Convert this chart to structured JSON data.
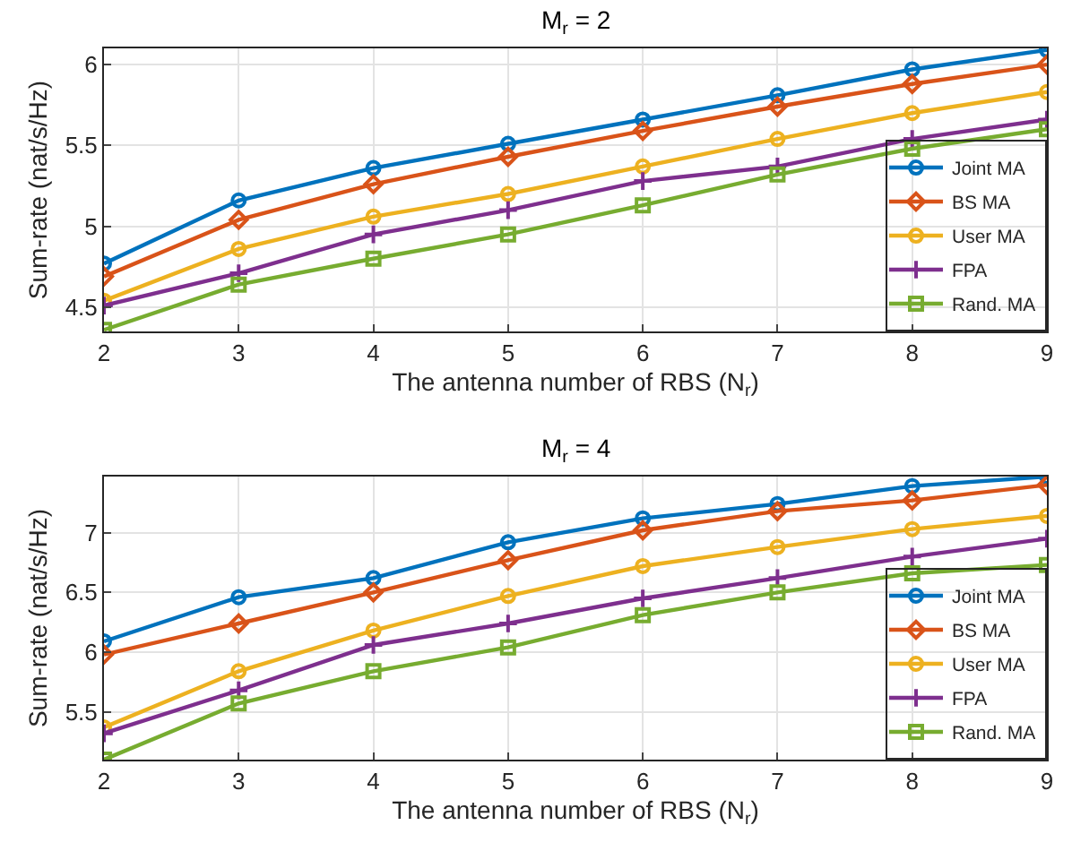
{
  "chart_data": [
    {
      "type": "line",
      "title": "M$_{r}$ = 2",
      "xlabel": "The antenna number of RBS (N$_{r}$)",
      "ylabel": "Sum-rate (nat/s/Hz)",
      "x": [
        2,
        3,
        4,
        5,
        6,
        7,
        8,
        9
      ],
      "xlim": [
        2,
        9
      ],
      "xticks": [
        2,
        3,
        4,
        5,
        6,
        7,
        8,
        9
      ],
      "ylim": [
        4.35,
        6.1
      ],
      "yticks": [
        4.5,
        5,
        5.5,
        6
      ],
      "grid": true,
      "legend": "bottom right",
      "series": [
        {
          "name": "Joint MA",
          "color": "#0072bd",
          "marker": "circle",
          "values": [
            4.77,
            5.16,
            5.36,
            5.51,
            5.66,
            5.81,
            5.97,
            6.09
          ]
        },
        {
          "name": "BS MA",
          "color": "#d95319",
          "marker": "diamond",
          "values": [
            4.69,
            5.04,
            5.26,
            5.43,
            5.59,
            5.74,
            5.88,
            6.0
          ]
        },
        {
          "name": "User MA",
          "color": "#edb120",
          "marker": "circle",
          "values": [
            4.54,
            4.86,
            5.06,
            5.2,
            5.37,
            5.54,
            5.7,
            5.83
          ]
        },
        {
          "name": "FPA",
          "color": "#7e2f8e",
          "marker": "cross",
          "values": [
            4.51,
            4.71,
            4.95,
            5.1,
            5.28,
            5.37,
            5.54,
            5.66
          ]
        },
        {
          "name": "Rand. MA",
          "color": "#77ac30",
          "marker": "square",
          "values": [
            4.36,
            4.64,
            4.8,
            4.95,
            5.13,
            5.32,
            5.48,
            5.6
          ]
        }
      ]
    },
    {
      "type": "line",
      "title": "M$_{r}$ = 4",
      "xlabel": "The antenna number of RBS (N$_{r}$)",
      "ylabel": "Sum-rate (nat/s/Hz)",
      "x": [
        2,
        3,
        4,
        5,
        6,
        7,
        8,
        9
      ],
      "xlim": [
        2,
        9
      ],
      "xticks": [
        2,
        3,
        4,
        5,
        6,
        7,
        8,
        9
      ],
      "ylim": [
        5.1,
        7.47
      ],
      "yticks": [
        5.5,
        6,
        6.5,
        7
      ],
      "grid": true,
      "legend": "bottom right",
      "series": [
        {
          "name": "Joint MA",
          "color": "#0072bd",
          "marker": "circle",
          "values": [
            6.09,
            6.46,
            6.62,
            6.92,
            7.12,
            7.24,
            7.39,
            7.47
          ]
        },
        {
          "name": "BS MA",
          "color": "#d95319",
          "marker": "diamond",
          "values": [
            5.98,
            6.24,
            6.5,
            6.77,
            7.02,
            7.18,
            7.27,
            7.4
          ]
        },
        {
          "name": "User MA",
          "color": "#edb120",
          "marker": "circle",
          "values": [
            5.37,
            5.84,
            6.18,
            6.47,
            6.72,
            6.88,
            7.03,
            7.14
          ]
        },
        {
          "name": "FPA",
          "color": "#7e2f8e",
          "marker": "cross",
          "values": [
            5.32,
            5.68,
            6.06,
            6.24,
            6.45,
            6.62,
            6.8,
            6.95
          ]
        },
        {
          "name": "Rand. MA",
          "color": "#77ac30",
          "marker": "square",
          "values": [
            5.1,
            5.57,
            5.84,
            6.04,
            6.31,
            6.5,
            6.66,
            6.73
          ]
        }
      ]
    }
  ]
}
